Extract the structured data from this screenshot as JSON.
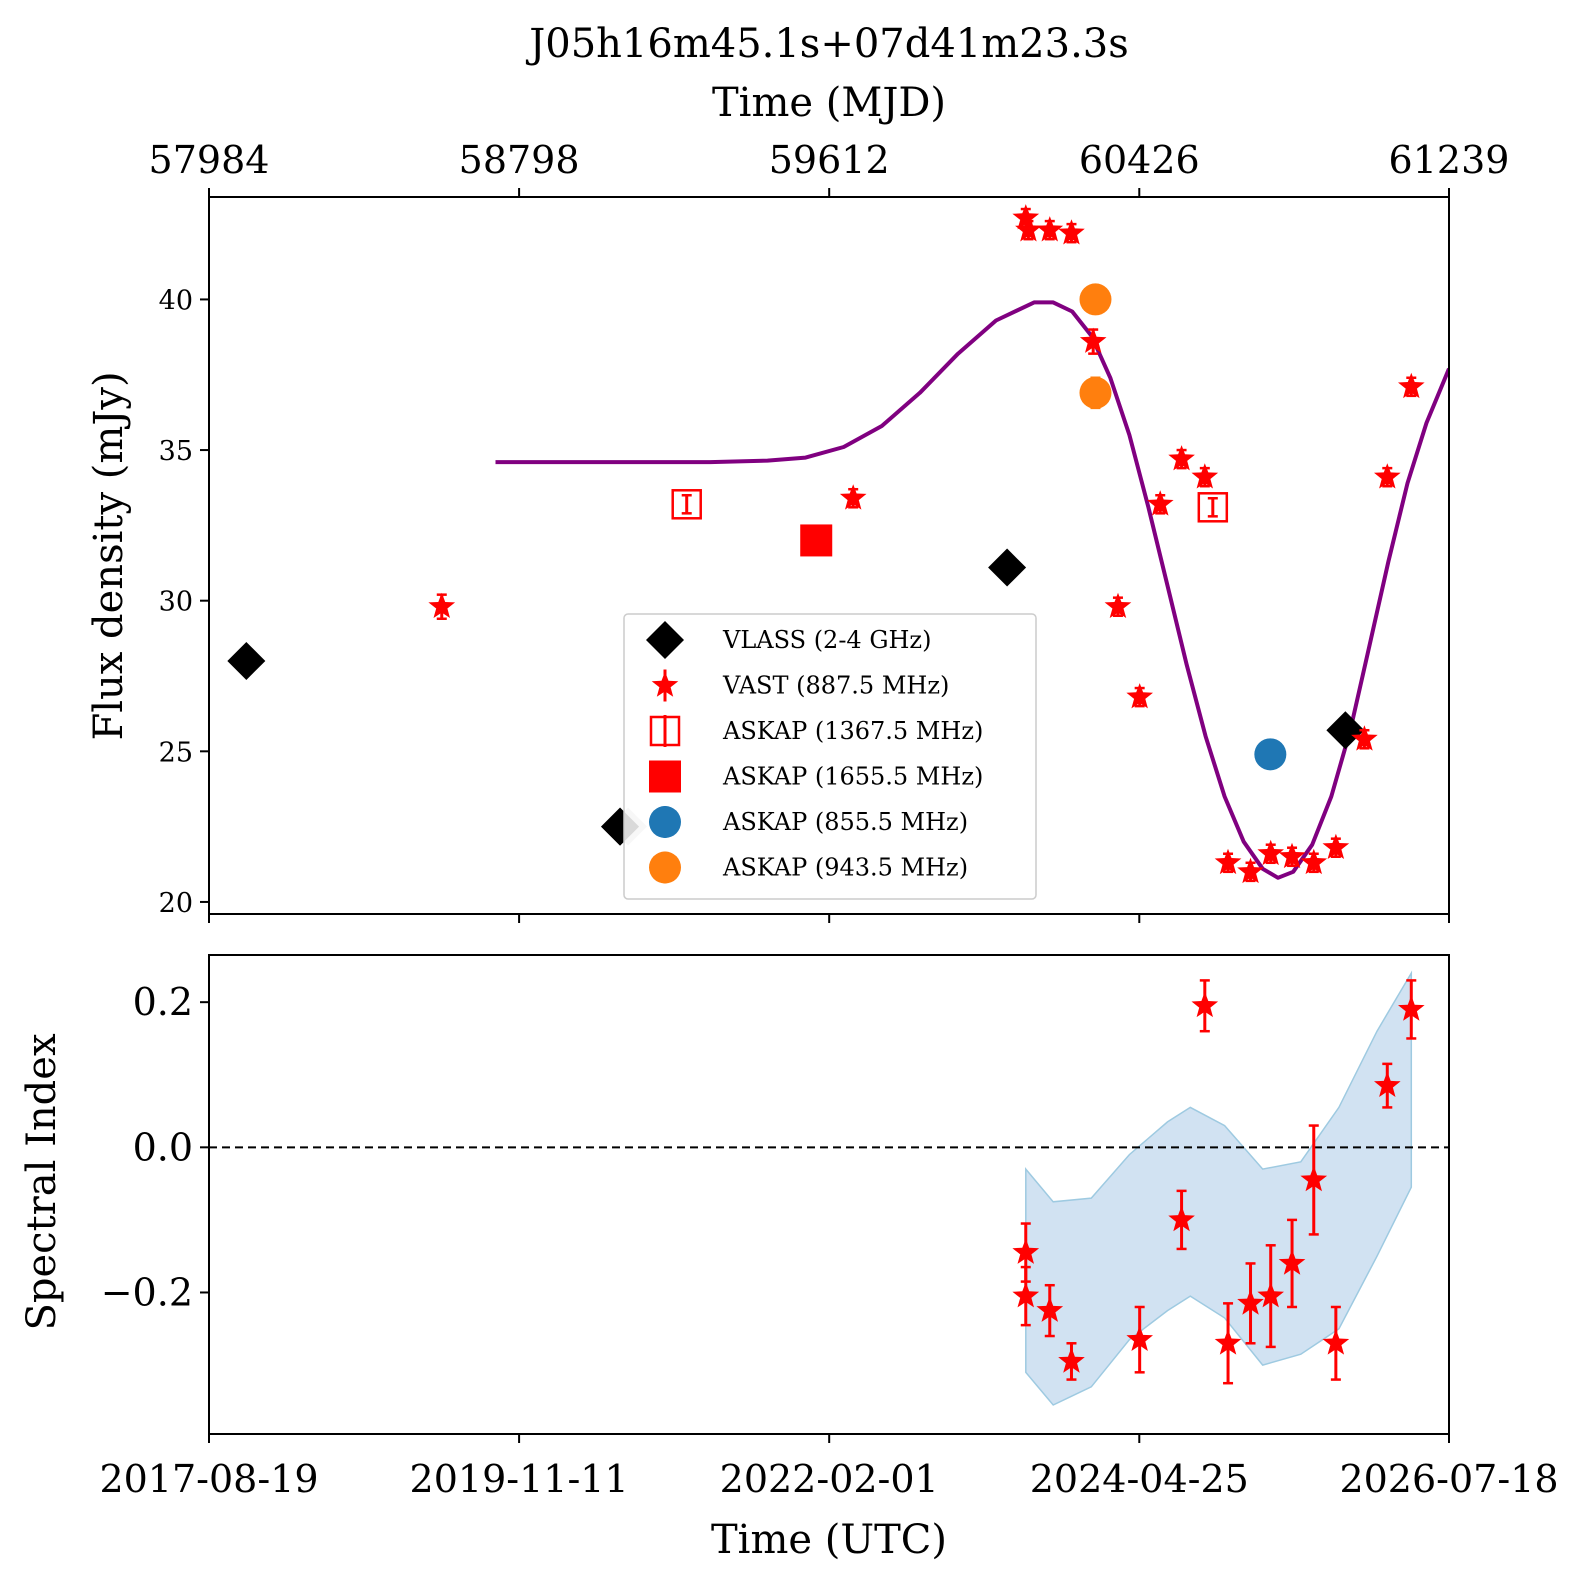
{
  "figure": {
    "title": "J05h16m45.1s+07d41m23.3s",
    "top_axis_label": "Time (MJD)",
    "bottom_axis_label": "Time (UTC)"
  },
  "colors": {
    "vlass": "#000000",
    "vast": "#ff0000",
    "askap_1367": "#ff0000",
    "askap_1655": "#ff0000",
    "askap_855": "#1f77b4",
    "askap_943": "#ff7f0e",
    "model_curve": "#800080",
    "band": "#c6dbef",
    "zero_line": "#000000"
  },
  "chart_data": [
    {
      "type": "scatter",
      "panel": "flux",
      "title": "J05h16m45.1s+07d41m23.3s",
      "xlabel_top": "Time (MJD)",
      "ylabel": "Flux density (mJy)",
      "x_unit": "MJD",
      "xlim": [
        57984,
        61239
      ],
      "ylim": [
        19.6,
        43.4
      ],
      "xticks_top": [
        "57984",
        "58798",
        "59612",
        "60426",
        "61239"
      ],
      "yticks": [
        "20",
        "25",
        "30",
        "35",
        "40"
      ],
      "legend_position": "lower-center",
      "series": [
        {
          "name": "VLASS (2-4 GHz)",
          "marker": "diamond",
          "points": [
            {
              "x": 58082,
              "y": 28.0
            },
            {
              "x": 59063,
              "y": 22.5
            },
            {
              "x": 60079,
              "y": 31.1
            },
            {
              "x": 60967,
              "y": 25.7
            }
          ]
        },
        {
          "name": "VAST (887.5 MHz)",
          "marker": "star",
          "points": [
            {
              "x": 58595,
              "y": 29.8,
              "err": 0.4
            },
            {
              "x": 59675,
              "y": 33.4,
              "err": 0.3
            },
            {
              "x": 60128,
              "y": 42.7,
              "err": 0.3
            },
            {
              "x": 60135,
              "y": 42.3,
              "err": 0.3
            },
            {
              "x": 60191,
              "y": 42.3,
              "err": 0.3
            },
            {
              "x": 60248,
              "y": 42.2,
              "err": 0.3
            },
            {
              "x": 60305,
              "y": 38.6,
              "err": 0.4
            },
            {
              "x": 60370,
              "y": 29.8,
              "err": 0.3
            },
            {
              "x": 60427,
              "y": 26.8,
              "err": 0.3
            },
            {
              "x": 60481,
              "y": 33.2,
              "err": 0.3
            },
            {
              "x": 60537,
              "y": 34.7,
              "err": 0.3
            },
            {
              "x": 60598,
              "y": 34.1,
              "err": 0.3
            },
            {
              "x": 60659,
              "y": 21.3,
              "err": 0.3
            },
            {
              "x": 60718,
              "y": 21.0,
              "err": 0.3
            },
            {
              "x": 60771,
              "y": 21.6,
              "err": 0.3
            },
            {
              "x": 60827,
              "y": 21.5,
              "err": 0.3
            },
            {
              "x": 60884,
              "y": 21.3,
              "err": 0.3
            },
            {
              "x": 60942,
              "y": 21.8,
              "err": 0.3
            },
            {
              "x": 61017,
              "y": 25.4,
              "err": 0.3
            },
            {
              "x": 61077,
              "y": 34.1,
              "err": 0.3
            },
            {
              "x": 61140,
              "y": 37.1,
              "err": 0.3
            }
          ]
        },
        {
          "name": "ASKAP (1367.5 MHz)",
          "marker": "open-square",
          "points": [
            {
              "x": 59238,
              "y": 33.2,
              "err": 0.3
            },
            {
              "x": 60619,
              "y": 33.1,
              "err": 0.3
            }
          ]
        },
        {
          "name": "ASKAP (1655.5 MHz)",
          "marker": "square",
          "points": [
            {
              "x": 59578,
              "y": 32.0,
              "err": 0.3
            }
          ]
        },
        {
          "name": "ASKAP (855.5 MHz)",
          "marker": "circle",
          "points": [
            {
              "x": 60770,
              "y": 24.9,
              "err": 0.3
            }
          ]
        },
        {
          "name": "ASKAP (943.5 MHz)",
          "marker": "circle",
          "points": [
            {
              "x": 60311,
              "y": 40.0,
              "err": 0.4
            },
            {
              "x": 60311,
              "y": 36.9,
              "err": 0.5
            }
          ]
        }
      ],
      "model_curve": {
        "style": "line",
        "points": [
          [
            58736,
            34.6
          ],
          [
            58900,
            34.6
          ],
          [
            59100,
            34.6
          ],
          [
            59300,
            34.6
          ],
          [
            59450,
            34.65
          ],
          [
            59550,
            34.75
          ],
          [
            59650,
            35.1
          ],
          [
            59750,
            35.8
          ],
          [
            59850,
            36.9
          ],
          [
            59950,
            38.2
          ],
          [
            60050,
            39.3
          ],
          [
            60150,
            39.9
          ],
          [
            60200,
            39.9
          ],
          [
            60250,
            39.6
          ],
          [
            60300,
            38.8
          ],
          [
            60350,
            37.4
          ],
          [
            60400,
            35.5
          ],
          [
            60450,
            33.1
          ],
          [
            60500,
            30.5
          ],
          [
            60550,
            27.9
          ],
          [
            60600,
            25.5
          ],
          [
            60650,
            23.5
          ],
          [
            60700,
            22.0
          ],
          [
            60750,
            21.1
          ],
          [
            60790,
            20.8
          ],
          [
            60830,
            21.0
          ],
          [
            60880,
            21.9
          ],
          [
            60930,
            23.5
          ],
          [
            60980,
            25.7
          ],
          [
            61030,
            28.5
          ],
          [
            61080,
            31.3
          ],
          [
            61130,
            33.9
          ],
          [
            61180,
            35.9
          ],
          [
            61239,
            37.7
          ]
        ]
      }
    },
    {
      "type": "scatter",
      "panel": "spectral_index",
      "ylabel": "Spectral Index",
      "xlabel": "Time (UTC)",
      "x_unit": "MJD",
      "xlim": [
        57984,
        61239
      ],
      "ylim": [
        -0.395,
        0.265
      ],
      "xticks": [
        "2017-08-19",
        "2019-11-11",
        "2022-02-01",
        "2024-04-25",
        "2026-07-18"
      ],
      "yticks": [
        "0.2",
        "0.0",
        "−0.2"
      ],
      "reference_line": {
        "y": 0.0,
        "style": "dashed"
      },
      "points": [
        {
          "x": 60128,
          "y": -0.145,
          "err": 0.04
        },
        {
          "x": 60128,
          "y": -0.205,
          "err": 0.04
        },
        {
          "x": 60191,
          "y": -0.225,
          "err": 0.035
        },
        {
          "x": 60248,
          "y": -0.295,
          "err": 0.025
        },
        {
          "x": 60427,
          "y": -0.265,
          "err": 0.045
        },
        {
          "x": 60537,
          "y": -0.1,
          "err": 0.04
        },
        {
          "x": 60598,
          "y": 0.195,
          "err": 0.035
        },
        {
          "x": 60659,
          "y": -0.27,
          "err": 0.055
        },
        {
          "x": 60718,
          "y": -0.215,
          "err": 0.055
        },
        {
          "x": 60771,
          "y": -0.205,
          "err": 0.07
        },
        {
          "x": 60827,
          "y": -0.16,
          "err": 0.06
        },
        {
          "x": 60884,
          "y": -0.045,
          "err": 0.075
        },
        {
          "x": 60942,
          "y": -0.27,
          "err": 0.05
        },
        {
          "x": 61077,
          "y": 0.085,
          "err": 0.03
        },
        {
          "x": 61140,
          "y": 0.19,
          "err": 0.04
        }
      ],
      "band": {
        "x": [
          60128,
          60200,
          60300,
          60400,
          60500,
          60560,
          60650,
          60750,
          60850,
          60950,
          61050,
          61140
        ],
        "upper": [
          -0.03,
          -0.075,
          -0.07,
          -0.01,
          0.035,
          0.055,
          0.03,
          -0.03,
          -0.02,
          0.055,
          0.16,
          0.24
        ],
        "lower": [
          -0.31,
          -0.355,
          -0.33,
          -0.265,
          -0.225,
          -0.205,
          -0.235,
          -0.3,
          -0.285,
          -0.25,
          -0.15,
          -0.055
        ]
      }
    }
  ]
}
